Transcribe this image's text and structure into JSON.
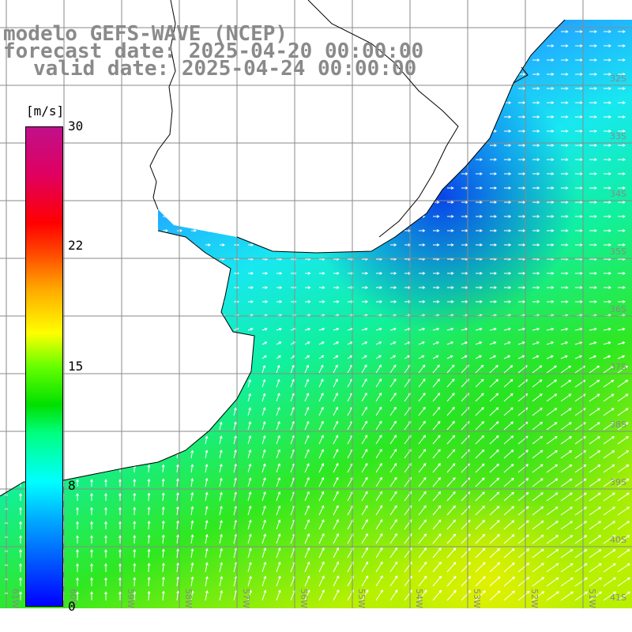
{
  "title": {
    "model": "modelo GEFS-WAVE (NCEP)",
    "forecast": "forecast date: 2025-04-20 00:00:00",
    "valid": "valid date: 2025-04-24 00:00:00"
  },
  "colorbar": {
    "unit": "[m/s]",
    "ticks": [
      "30",
      "22",
      "15",
      "8",
      "0"
    ]
  },
  "grid": {
    "lat_labels": [
      "32S",
      "33S",
      "34S",
      "35S",
      "36S",
      "37S",
      "38S",
      "39S",
      "40S",
      "41S"
    ],
    "lon_labels": [
      "61W",
      "60W",
      "59W",
      "58W",
      "57W",
      "56W",
      "55W",
      "54W",
      "53W",
      "52W",
      "51W"
    ]
  },
  "colors": {
    "land": "#ffffff",
    "grid": "#8a8a8a",
    "title": "#8a8a8a",
    "arrows": "#ffffff",
    "coast": "#000000"
  }
}
